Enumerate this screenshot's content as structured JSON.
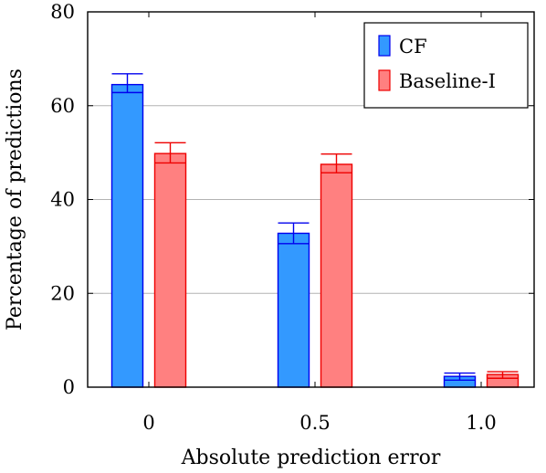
{
  "chart_data": {
    "type": "bar",
    "title": "",
    "xlabel": "Absolute prediction error",
    "ylabel": "Percentage of predictions",
    "categories": [
      "0",
      "0.5",
      "1.0"
    ],
    "ylim": [
      0,
      80
    ],
    "yticks": [
      0,
      20,
      40,
      60,
      80
    ],
    "grid": {
      "y": true,
      "x": false
    },
    "legend": {
      "position": "top-right"
    },
    "series": [
      {
        "name": "CF",
        "values": [
          64.5,
          32.8,
          2.3
        ],
        "error_upper": [
          66.8,
          35.0,
          3.0
        ],
        "error_lower": [
          62.8,
          30.6,
          1.5
        ],
        "fill": "#3399ff",
        "stroke": "#0000ee"
      },
      {
        "name": "Baseline-I",
        "values": [
          49.8,
          47.5,
          2.7
        ],
        "error_upper": [
          52.1,
          49.7,
          3.3
        ],
        "error_lower": [
          47.8,
          45.7,
          1.9
        ],
        "fill": "#ff8080",
        "stroke": "#ee0000"
      }
    ]
  }
}
